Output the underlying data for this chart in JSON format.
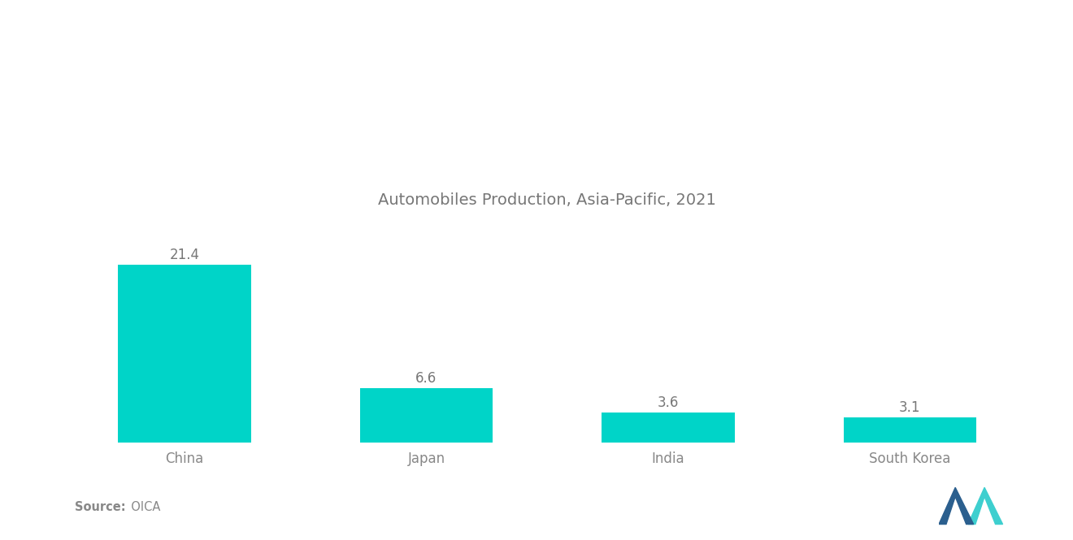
{
  "title": "Automobiles Production, Asia-Pacific, 2021",
  "categories": [
    "China",
    "Japan",
    "India",
    "South Korea"
  ],
  "values": [
    21.4,
    6.6,
    3.6,
    3.1
  ],
  "bar_color": "#00D4C8",
  "value_labels": [
    "21.4",
    "6.6",
    "3.6",
    "3.1"
  ],
  "source_bold": "Source:",
  "source_normal": "  OICA",
  "background_color": "#ffffff",
  "title_color": "#777777",
  "label_color": "#888888",
  "value_color": "#777777",
  "title_fontsize": 14,
  "label_fontsize": 12,
  "value_fontsize": 12,
  "ylim": [
    0,
    26
  ],
  "bar_width": 0.55,
  "logo_dark_blue": "#2B5F8E",
  "logo_teal": "#3ECFCF"
}
